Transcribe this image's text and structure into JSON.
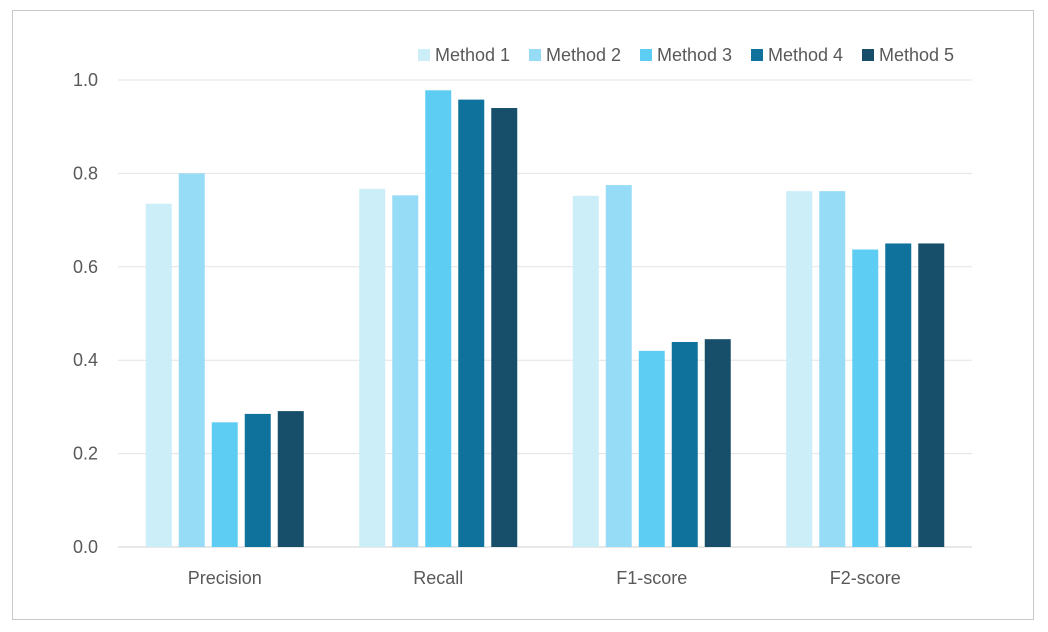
{
  "chart_data": {
    "type": "bar",
    "title": "",
    "xlabel": "",
    "ylabel": "",
    "categories": [
      "Precision",
      "Recall",
      "F1-score",
      "F2-score"
    ],
    "ylim": [
      0,
      1.0
    ],
    "yticks": [
      "0.0",
      "0.2",
      "0.4",
      "0.6",
      "0.8",
      "1.0"
    ],
    "ytick_values": [
      0,
      0.2,
      0.4,
      0.6,
      0.8,
      1.0
    ],
    "grid": true,
    "legend_position": "top-right",
    "series": [
      {
        "name": "Method 1",
        "color": "#CCEEF9",
        "values": [
          0.735,
          0.767,
          0.752,
          0.762
        ]
      },
      {
        "name": "Method 2",
        "color": "#97DCF6",
        "values": [
          0.8,
          0.753,
          0.775,
          0.762
        ]
      },
      {
        "name": "Method 3",
        "color": "#5ECDF3",
        "values": [
          0.267,
          0.978,
          0.42,
          0.637
        ]
      },
      {
        "name": "Method 4",
        "color": "#0E729D",
        "values": [
          0.285,
          0.958,
          0.439,
          0.65
        ]
      },
      {
        "name": "Method 5",
        "color": "#174E69",
        "values": [
          0.291,
          0.94,
          0.445,
          0.65
        ]
      }
    ]
  }
}
